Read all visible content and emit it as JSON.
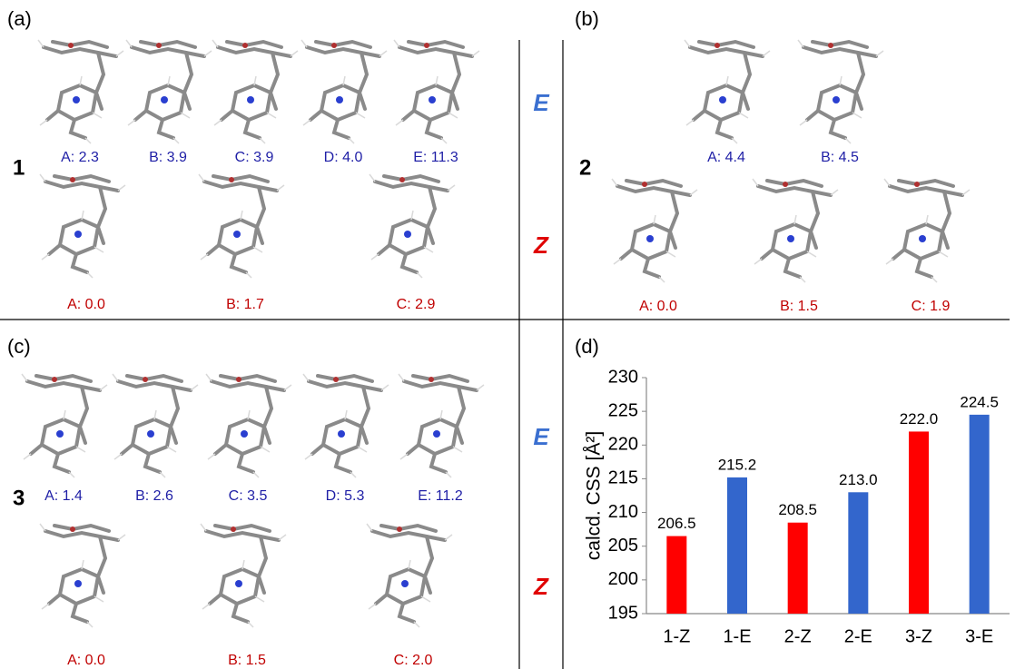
{
  "panels": {
    "a": {
      "label": "(a)",
      "compound": "1",
      "E": [
        "A: 2.3",
        "B: 3.9",
        "C: 3.9",
        "D: 4.0",
        "E: 11.3"
      ],
      "Z": [
        "A: 0.0",
        "B: 1.7",
        "C: 2.9"
      ]
    },
    "b": {
      "label": "(b)",
      "compound": "2",
      "E": [
        "A: 4.4",
        "B: 4.5"
      ],
      "Z": [
        "A: 0.0",
        "B: 1.5",
        "C: 1.9"
      ]
    },
    "c": {
      "label": "(c)",
      "compound": "3",
      "E": [
        "A: 1.4",
        "B: 2.6",
        "C: 3.5",
        "D: 5.3",
        "E: 11.2"
      ],
      "Z": [
        "A: 0.0",
        "B: 1.5",
        "C: 2.0"
      ]
    },
    "d": {
      "label": "(d)"
    }
  },
  "row_markers": [
    [
      "E",
      "Z"
    ],
    [
      "E",
      "Z"
    ]
  ],
  "chart_data": {
    "type": "bar",
    "y_label": "calcd. CSS [Å²]",
    "categories": [
      "1-Z",
      "1-E",
      "2-Z",
      "2-E",
      "3-Z",
      "3-E"
    ],
    "values": [
      206.5,
      215.2,
      208.5,
      213.0,
      222.0,
      224.5
    ],
    "value_labels": [
      "206.5",
      "215.2",
      "208.5",
      "213.0",
      "222.0",
      "224.5"
    ],
    "colors": [
      "#ff0000",
      "#3366cc",
      "#ff0000",
      "#3366cc",
      "#ff0000",
      "#3366cc"
    ],
    "ylim": [
      195,
      230
    ],
    "yticks": [
      195,
      200,
      205,
      210,
      215,
      220,
      225,
      230
    ],
    "grid": false
  }
}
